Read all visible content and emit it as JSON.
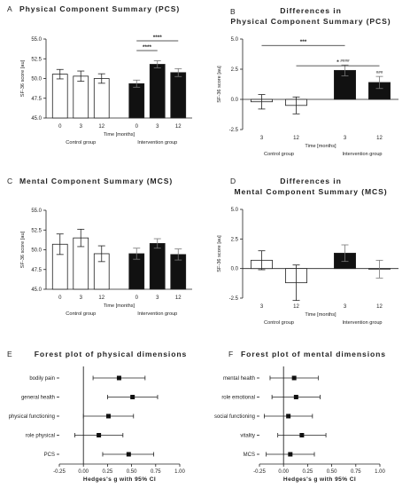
{
  "chart_data": [
    {
      "id": "A",
      "type": "bar",
      "panel_letter": "A",
      "title": "Physical Component Summary (PCS)",
      "ylabel": "SF-36 score [au]",
      "xlabel": "Time [months]",
      "ylim": [
        45.0,
        55.0
      ],
      "yticks": [
        "45.0",
        "47.5",
        "50.0",
        "52.5",
        "55.0"
      ],
      "categories": [
        "0",
        "3",
        "12",
        "0",
        "3",
        "12"
      ],
      "groups": [
        "Control group",
        "Intervention group"
      ],
      "fill": [
        "white",
        "white",
        "white",
        "black",
        "black",
        "black"
      ],
      "values": [
        50.55,
        50.3,
        50.0,
        49.35,
        51.8,
        50.75
      ],
      "errors": [
        0.6,
        0.65,
        0.6,
        0.45,
        0.45,
        0.5
      ],
      "significance": [
        {
          "from": 3,
          "to": 5,
          "label": "****"
        },
        {
          "from": 3,
          "to": 4,
          "label": "****"
        }
      ]
    },
    {
      "id": "B",
      "type": "bar",
      "panel_letter": "B",
      "title_line1": "Differences in",
      "title_line2": "Physical Component Summary (PCS)",
      "ylabel": "SF-36 score [au]",
      "xlabel": "Time [months]",
      "ylim": [
        -2.5,
        5.0
      ],
      "yticks": [
        "-2.5",
        "0.0",
        "2.5",
        "5.0"
      ],
      "categories": [
        "3",
        "12",
        "3",
        "12"
      ],
      "groups": [
        "Control group",
        "Intervention group"
      ],
      "fill": [
        "white",
        "white",
        "black",
        "black"
      ],
      "values": [
        -0.2,
        -0.5,
        2.4,
        1.4
      ],
      "errors": [
        0.6,
        0.7,
        0.45,
        0.5
      ],
      "bar_labels": [
        "",
        "",
        "####",
        "###"
      ],
      "significance": [
        {
          "from": 0,
          "to": 2,
          "label": "***"
        },
        {
          "from": 1,
          "to": 3,
          "label": "*"
        }
      ]
    },
    {
      "id": "C",
      "type": "bar",
      "panel_letter": "C",
      "title": "Mental Component Summary (MCS)",
      "ylabel": "SF-36 score [au]",
      "xlabel": "Time [months]",
      "ylim": [
        45.0,
        55.0
      ],
      "yticks": [
        "45.0",
        "47.5",
        "50.0",
        "52.5",
        "55.0"
      ],
      "categories": [
        "0",
        "3",
        "12",
        "0",
        "3",
        "12"
      ],
      "groups": [
        "Control group",
        "Intervention group"
      ],
      "fill": [
        "white",
        "white",
        "white",
        "black",
        "black",
        "black"
      ],
      "values": [
        50.7,
        51.5,
        49.5,
        49.5,
        50.8,
        49.4
      ],
      "errors": [
        1.3,
        1.1,
        1.0,
        0.7,
        0.6,
        0.7
      ]
    },
    {
      "id": "D",
      "type": "bar",
      "panel_letter": "D",
      "title_line1": "Differences in",
      "title_line2": "Mental Component Summary (MCS)",
      "ylabel": "SF-36 score [au]",
      "xlabel": "Time [months]",
      "ylim": [
        -2.5,
        5.0
      ],
      "yticks": [
        "-2.5",
        "0.0",
        "2.5",
        "5.0"
      ],
      "categories": [
        "3",
        "12",
        "3",
        "12"
      ],
      "groups": [
        "Control group",
        "Intervention group"
      ],
      "fill": [
        "white",
        "white",
        "black",
        "black"
      ],
      "values": [
        0.7,
        -1.2,
        1.3,
        -0.05
      ],
      "errors": [
        0.8,
        1.5,
        0.7,
        0.75
      ]
    },
    {
      "id": "E",
      "type": "scatter",
      "panel_letter": "E",
      "title": "Forest plot of physical dimensions",
      "xlabel": "Hedges's g with 95% CI",
      "xlim": [
        -0.25,
        1.0
      ],
      "xticks": [
        "-0.25",
        "0.00",
        "0.25",
        "0.50",
        "0.75",
        "1.00"
      ],
      "labels": [
        "bodily pain",
        "general health",
        "physical functioning",
        "role physical",
        "PCS"
      ],
      "g": [
        0.37,
        0.51,
        0.26,
        0.16,
        0.47
      ],
      "ci_low": [
        0.1,
        0.25,
        0.0,
        -0.09,
        0.2
      ],
      "ci_high": [
        0.64,
        0.77,
        0.52,
        0.41,
        0.73
      ]
    },
    {
      "id": "F",
      "type": "scatter",
      "panel_letter": "F",
      "title": "Forest plot of mental dimensions",
      "xlabel": "Hedges's g with 95% CI",
      "xlim": [
        -0.25,
        1.0
      ],
      "xticks": [
        "-0.25",
        "0.00",
        "0.25",
        "0.50",
        "0.75",
        "1.00"
      ],
      "labels": [
        "mental health",
        "role emotional",
        "social functioning",
        "vitality",
        "MCS"
      ],
      "g": [
        0.11,
        0.13,
        0.05,
        0.19,
        0.07
      ],
      "ci_low": [
        -0.14,
        -0.12,
        -0.2,
        -0.06,
        -0.18
      ],
      "ci_high": [
        0.36,
        0.38,
        0.3,
        0.44,
        0.32
      ]
    }
  ]
}
